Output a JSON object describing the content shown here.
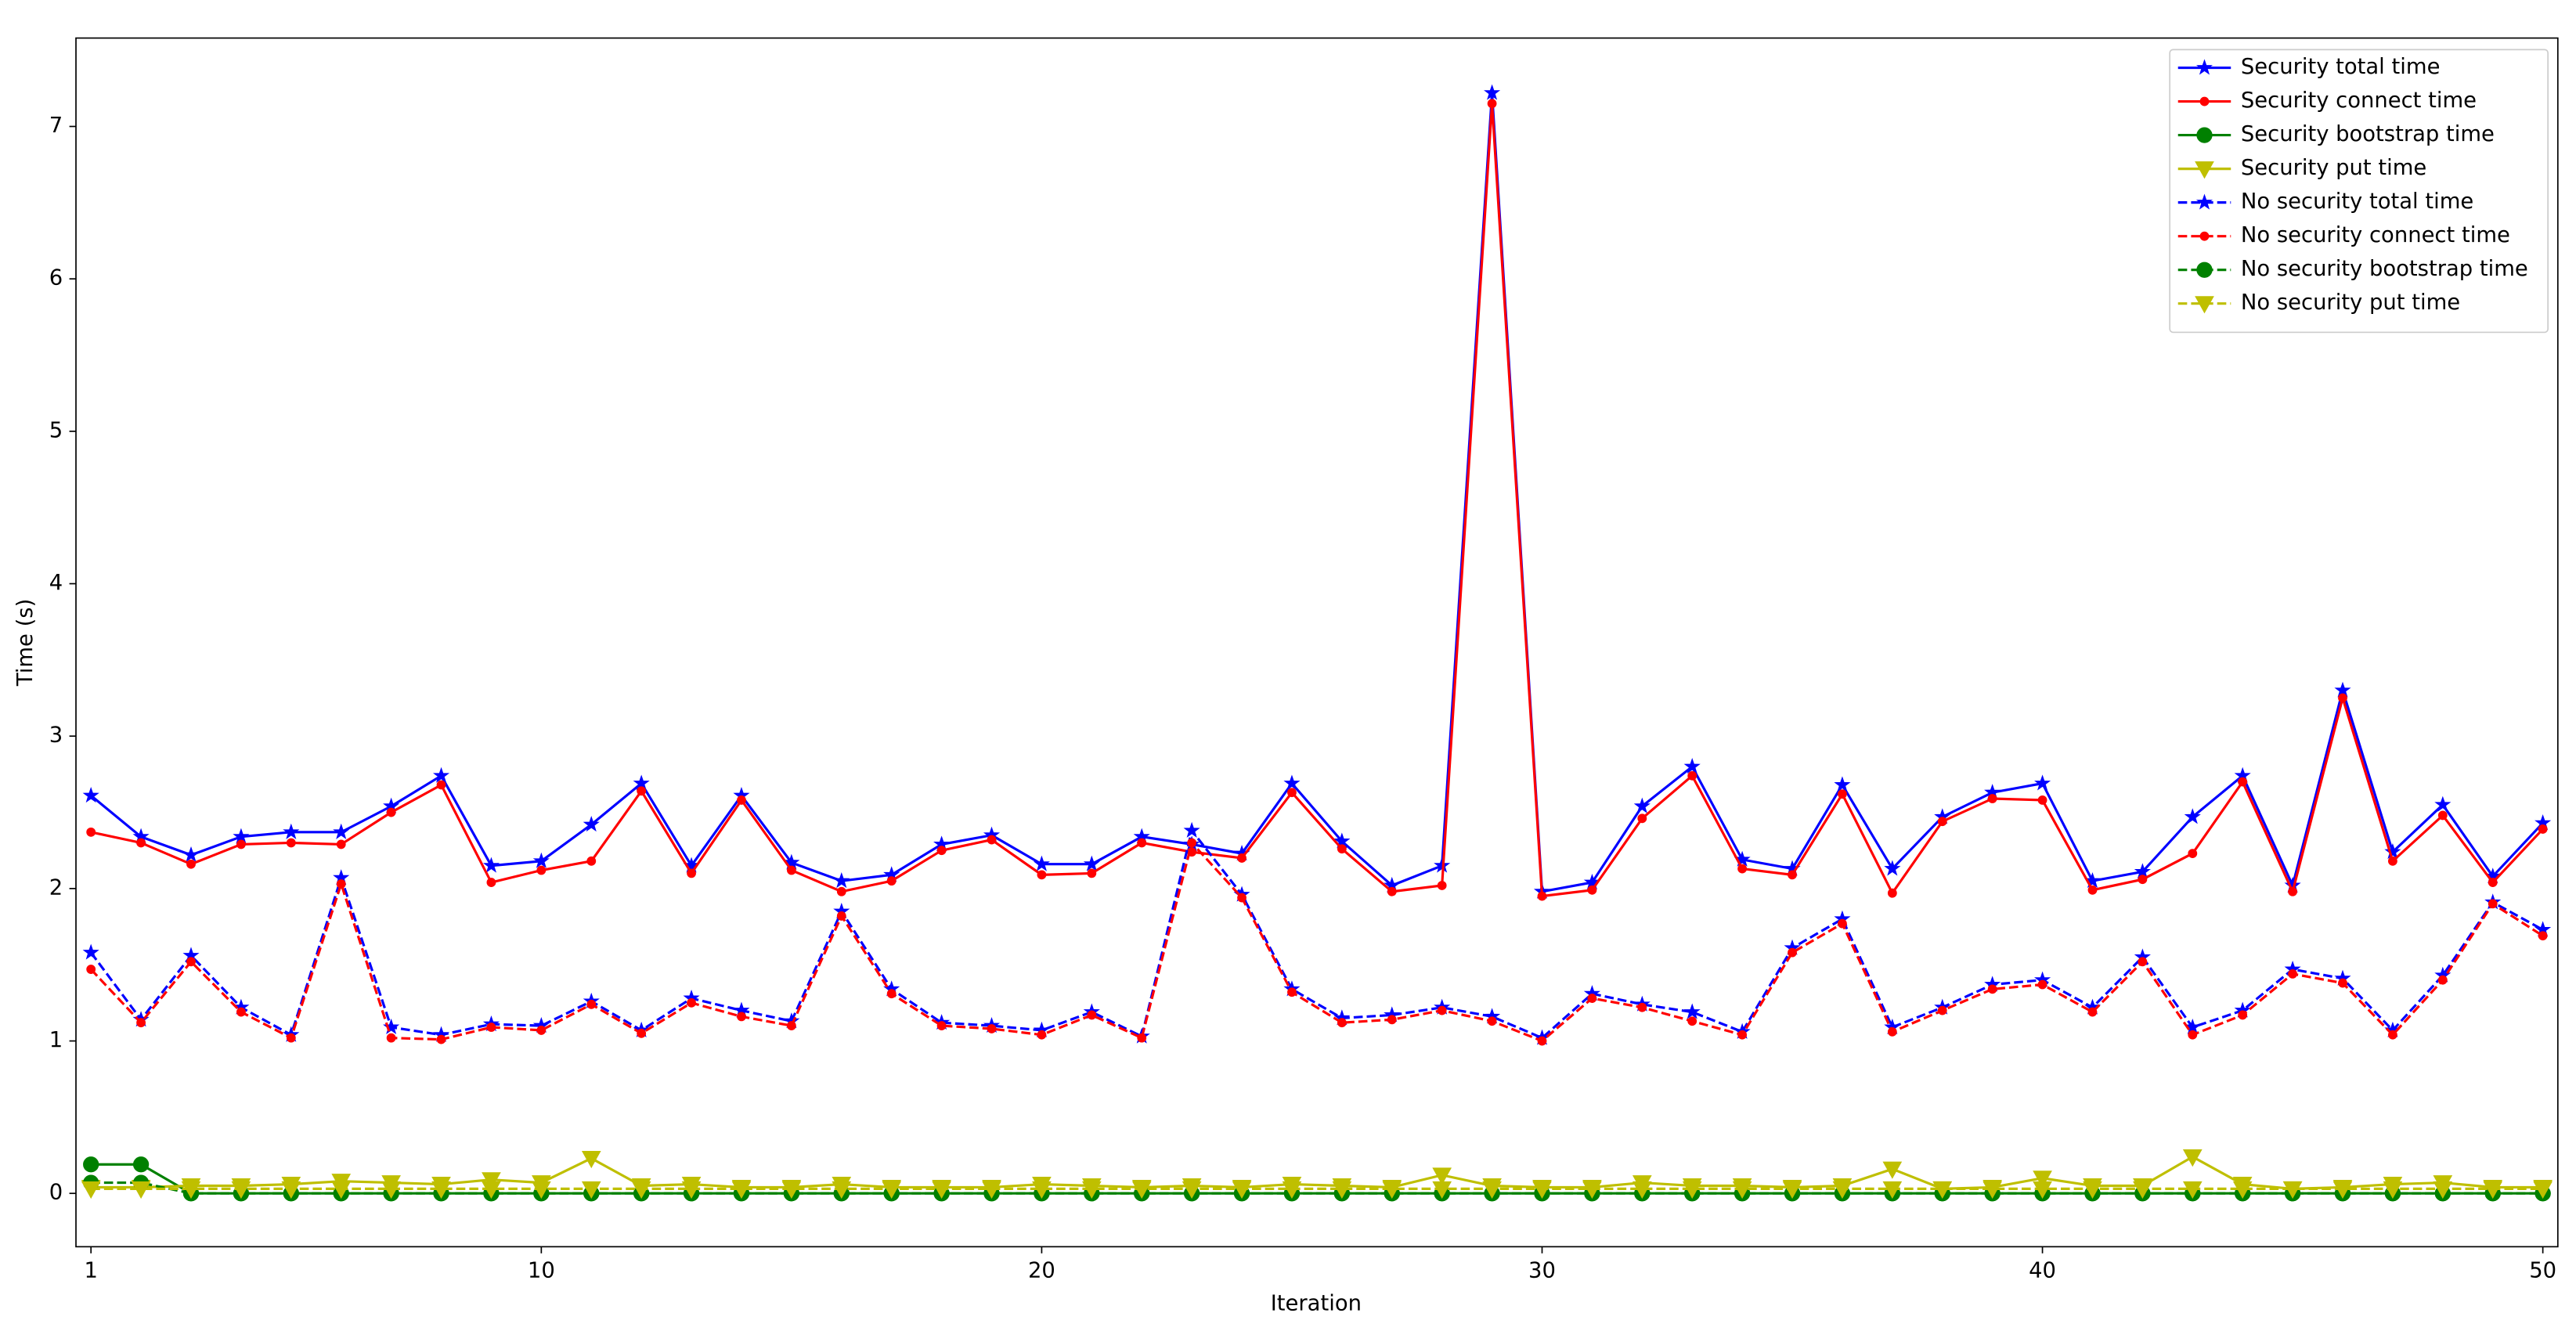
{
  "chart_data": {
    "type": "line",
    "x_label": "Iteration",
    "y_label": "Time (s)",
    "x": [
      1,
      2,
      3,
      4,
      5,
      6,
      7,
      8,
      9,
      10,
      11,
      12,
      13,
      14,
      15,
      16,
      17,
      18,
      19,
      20,
      21,
      22,
      23,
      24,
      25,
      26,
      27,
      28,
      29,
      30,
      31,
      32,
      33,
      34,
      35,
      36,
      37,
      38,
      39,
      40,
      41,
      42,
      43,
      44,
      45,
      46,
      47,
      48,
      49,
      50
    ],
    "xlim": [
      0.7,
      50.3
    ],
    "ylim": [
      -0.35,
      7.58
    ],
    "xticks": [
      1,
      10,
      20,
      30,
      40,
      50
    ],
    "yticks": [
      0,
      1,
      2,
      3,
      4,
      5,
      6,
      7
    ],
    "legend_position": "upper right",
    "series": [
      {
        "name": "Security total time",
        "color": "#0000ff",
        "linestyle": "solid",
        "marker": "star",
        "values": [
          2.61,
          2.34,
          2.22,
          2.34,
          2.37,
          2.37,
          2.54,
          2.74,
          2.15,
          2.18,
          2.42,
          2.69,
          2.15,
          2.61,
          2.17,
          2.05,
          2.09,
          2.29,
          2.35,
          2.16,
          2.16,
          2.34,
          2.29,
          2.23,
          2.69,
          2.31,
          2.02,
          2.15,
          7.22,
          1.98,
          2.04,
          2.54,
          2.8,
          2.19,
          2.13,
          2.68,
          2.13,
          2.47,
          2.63,
          2.69,
          2.05,
          2.11,
          2.47,
          2.74,
          2.02,
          3.3,
          2.24,
          2.55,
          2.08,
          2.43
        ]
      },
      {
        "name": "Security connect time",
        "color": "#ff0000",
        "linestyle": "solid",
        "marker": "point",
        "values": [
          2.37,
          2.3,
          2.16,
          2.29,
          2.3,
          2.29,
          2.5,
          2.68,
          2.04,
          2.12,
          2.18,
          2.64,
          2.1,
          2.58,
          2.12,
          1.98,
          2.05,
          2.25,
          2.32,
          2.09,
          2.1,
          2.3,
          2.24,
          2.2,
          2.63,
          2.26,
          1.98,
          2.02,
          7.15,
          1.95,
          1.99,
          2.46,
          2.74,
          2.13,
          2.09,
          2.62,
          1.97,
          2.44,
          2.59,
          2.58,
          1.99,
          2.06,
          2.23,
          2.7,
          1.98,
          3.25,
          2.18,
          2.48,
          2.04,
          2.39
        ]
      },
      {
        "name": "Security bootstrap time",
        "color": "#008000",
        "linestyle": "solid",
        "marker": "circle",
        "values": [
          0.19,
          0.19,
          0,
          0,
          0,
          0,
          0,
          0,
          0,
          0,
          0,
          0,
          0,
          0,
          0,
          0,
          0,
          0,
          0,
          0,
          0,
          0,
          0,
          0,
          0,
          0,
          0,
          0,
          0,
          0,
          0,
          0,
          0,
          0,
          0,
          0,
          0,
          0,
          0,
          0,
          0,
          0,
          0,
          0,
          0,
          0,
          0,
          0,
          0,
          0
        ]
      },
      {
        "name": "Security put time",
        "color": "#bfbf00",
        "linestyle": "solid",
        "marker": "triangle_down",
        "values": [
          0.04,
          0.04,
          0.05,
          0.05,
          0.06,
          0.08,
          0.07,
          0.06,
          0.09,
          0.07,
          0.23,
          0.05,
          0.06,
          0.04,
          0.04,
          0.06,
          0.04,
          0.04,
          0.04,
          0.06,
          0.05,
          0.04,
          0.05,
          0.04,
          0.06,
          0.05,
          0.04,
          0.12,
          0.05,
          0.04,
          0.04,
          0.07,
          0.05,
          0.05,
          0.04,
          0.05,
          0.16,
          0.03,
          0.04,
          0.1,
          0.05,
          0.05,
          0.24,
          0.06,
          0.03,
          0.04,
          0.06,
          0.07,
          0.04,
          0.04
        ]
      },
      {
        "name": "No security total time",
        "color": "#0000ff",
        "linestyle": "dashed",
        "marker": "star",
        "values": [
          1.58,
          1.14,
          1.56,
          1.22,
          1.04,
          2.07,
          1.09,
          1.04,
          1.11,
          1.1,
          1.26,
          1.07,
          1.28,
          1.2,
          1.13,
          1.85,
          1.34,
          1.12,
          1.1,
          1.07,
          1.19,
          1.03,
          2.38,
          1.96,
          1.34,
          1.15,
          1.17,
          1.22,
          1.16,
          1.02,
          1.31,
          1.24,
          1.19,
          1.06,
          1.61,
          1.8,
          1.09,
          1.22,
          1.37,
          1.4,
          1.22,
          1.55,
          1.09,
          1.2,
          1.47,
          1.41,
          1.07,
          1.43,
          1.91,
          1.73
        ]
      },
      {
        "name": "No security connect time",
        "color": "#ff0000",
        "linestyle": "dashed",
        "marker": "point",
        "values": [
          1.47,
          1.12,
          1.52,
          1.19,
          1.02,
          2.03,
          1.02,
          1.01,
          1.09,
          1.07,
          1.24,
          1.05,
          1.25,
          1.16,
          1.1,
          1.82,
          1.31,
          1.1,
          1.08,
          1.04,
          1.17,
          1.02,
          2.3,
          1.94,
          1.32,
          1.12,
          1.14,
          1.2,
          1.13,
          1.0,
          1.28,
          1.22,
          1.13,
          1.04,
          1.58,
          1.77,
          1.06,
          1.2,
          1.34,
          1.37,
          1.19,
          1.52,
          1.04,
          1.17,
          1.44,
          1.38,
          1.04,
          1.4,
          1.9,
          1.69
        ]
      },
      {
        "name": "No security bootstrap time",
        "color": "#008000",
        "linestyle": "dashed",
        "marker": "circle",
        "values": [
          0.07,
          0.07,
          0,
          0,
          0,
          0,
          0,
          0,
          0,
          0,
          0,
          0,
          0,
          0,
          0,
          0,
          0,
          0,
          0,
          0,
          0,
          0,
          0,
          0,
          0,
          0,
          0,
          0,
          0,
          0,
          0,
          0,
          0,
          0,
          0,
          0,
          0,
          0,
          0,
          0,
          0,
          0,
          0,
          0,
          0,
          0,
          0,
          0,
          0,
          0
        ]
      },
      {
        "name": "No security put time",
        "color": "#bfbf00",
        "linestyle": "dashed",
        "marker": "triangle_down",
        "values": [
          0.03,
          0.03,
          0.03,
          0.03,
          0.03,
          0.03,
          0.03,
          0.03,
          0.03,
          0.03,
          0.03,
          0.03,
          0.03,
          0.03,
          0.03,
          0.03,
          0.03,
          0.03,
          0.03,
          0.03,
          0.03,
          0.03,
          0.03,
          0.03,
          0.03,
          0.03,
          0.03,
          0.03,
          0.03,
          0.03,
          0.03,
          0.03,
          0.03,
          0.03,
          0.03,
          0.03,
          0.03,
          0.03,
          0.03,
          0.03,
          0.03,
          0.03,
          0.03,
          0.03,
          0.03,
          0.03,
          0.03,
          0.03,
          0.03,
          0.03
        ]
      }
    ]
  }
}
